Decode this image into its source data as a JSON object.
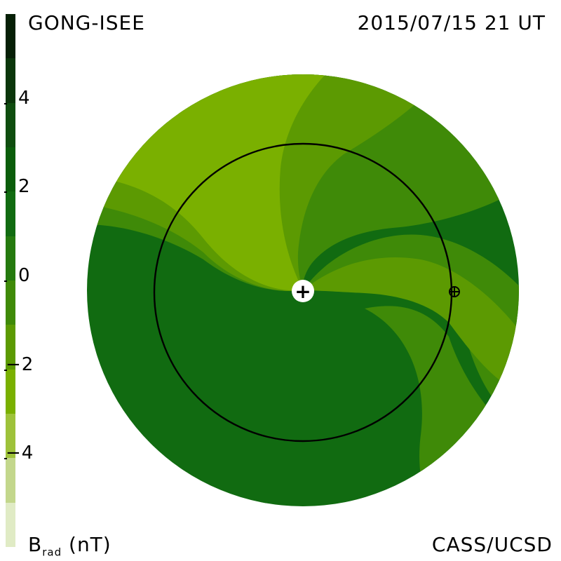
{
  "header": {
    "source_label": "GONG-ISEE",
    "timestamp_label": "2015/07/15 21 UT"
  },
  "footer": {
    "quantity_label": "B",
    "quantity_subscript": "rad",
    "unit_label": "(nT)",
    "credit_label": "CASS/UCSD"
  },
  "colorbar": {
    "min": -6,
    "max": 6,
    "ticks": [
      {
        "value": 4,
        "label": "4"
      },
      {
        "value": 2,
        "label": "2"
      },
      {
        "value": 0,
        "label": "0"
      },
      {
        "value": -2,
        "label": "-2"
      },
      {
        "value": -4,
        "label": "-4"
      }
    ],
    "bands": [
      {
        "from": 5,
        "to": 6,
        "color": "#061f06"
      },
      {
        "from": 4,
        "to": 5,
        "color": "#0b360b"
      },
      {
        "from": 3,
        "to": 4,
        "color": "#0f4d0f"
      },
      {
        "from": 2,
        "to": 3,
        "color": "#0b5d0b"
      },
      {
        "from": 1,
        "to": 2,
        "color": "#116b11"
      },
      {
        "from": 0,
        "to": 1,
        "color": "#257a0f"
      },
      {
        "from": -1,
        "to": 0,
        "color": "#3f8a08"
      },
      {
        "from": -2,
        "to": -1,
        "color": "#5c9a02"
      },
      {
        "from": -3,
        "to": -2,
        "color": "#7ab000"
      },
      {
        "from": -4,
        "to": -3,
        "color": "#9ec23a"
      },
      {
        "from": -5,
        "to": -4,
        "color": "#c3d78c"
      },
      {
        "from": -6,
        "to": -5,
        "color": "#e0ebc5"
      }
    ]
  },
  "map": {
    "sun_symbol": "+",
    "earth_symbol": "⊕",
    "colors": {
      "dark_sector": "#116b11",
      "light_sector": "#7ab000",
      "mid1": "#5c9a02",
      "mid2": "#3f8a08",
      "orbit": "#000000"
    }
  }
}
